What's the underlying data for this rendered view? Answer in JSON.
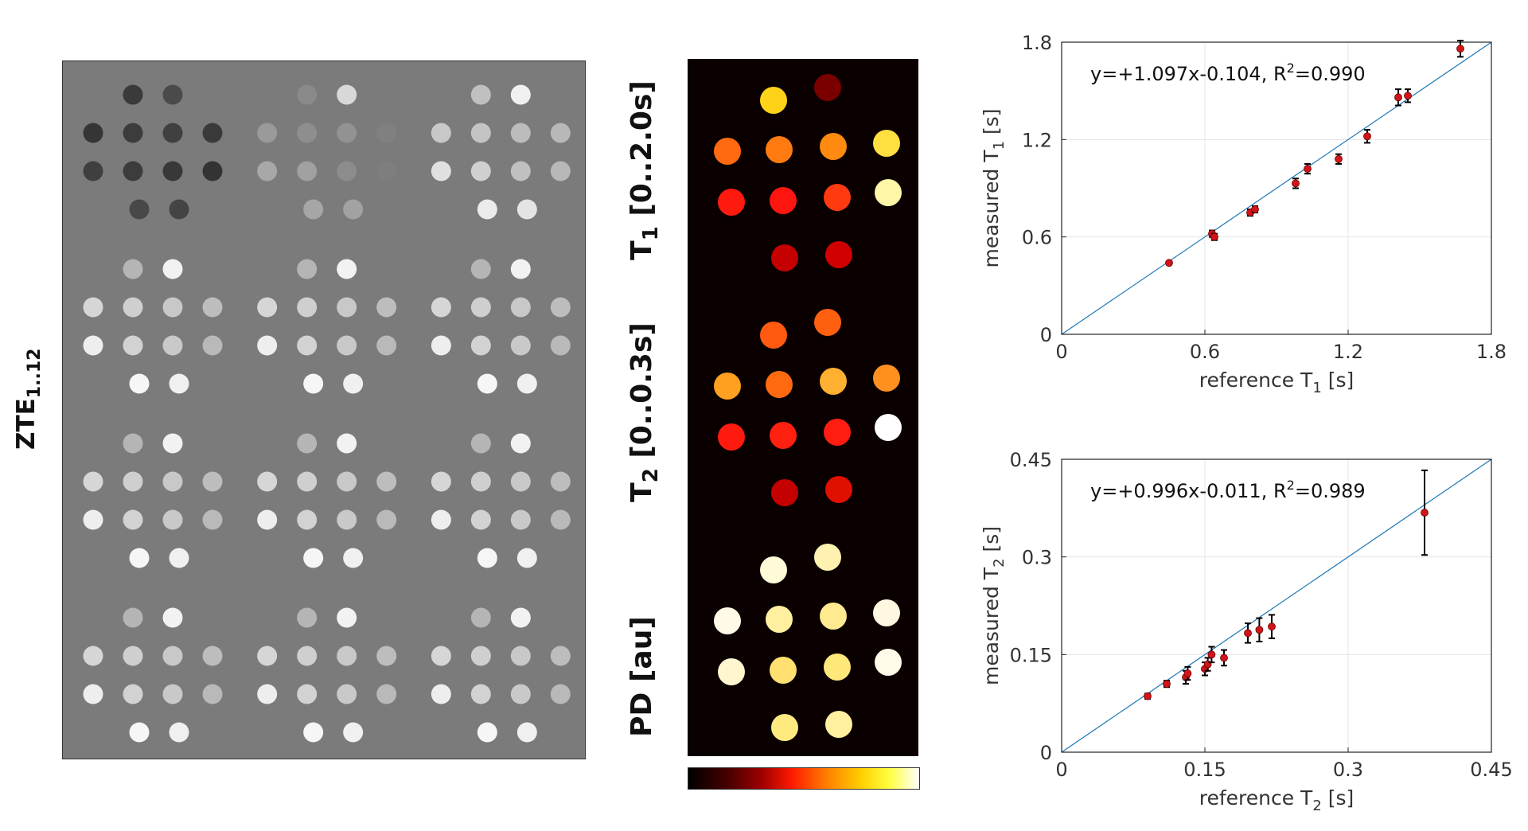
{
  "panels": {
    "zte_label": "ZTE",
    "zte_label_sub": "1..12",
    "t1_label_main": "T",
    "t1_label_sub": "1",
    "t1_label_range": " [0..2.0s]",
    "t2_label_main": "T",
    "t2_label_sub": "2",
    "t2_label_range": " [0..0.3s]",
    "pd_label": "PD [au]"
  },
  "colors": {
    "marker": "#d0141a",
    "fit_line": "#1f77b4",
    "errorbar": "#000000"
  },
  "chart_data": [
    {
      "type": "scatter",
      "name": "T1",
      "annotation": "y=+1.097x-0.104,  R",
      "annotation_sup": "2",
      "annotation_tail": "=0.990",
      "xlabel_main": "reference T",
      "xlabel_sub": "1",
      "xlabel_unit": " [s]",
      "ylabel_main": "measured T",
      "ylabel_sub": "1",
      "ylabel_unit": " [s]",
      "xlim": [
        0,
        1.8
      ],
      "ylim": [
        0,
        1.8
      ],
      "xticks": [
        "0",
        "0.6",
        "1.2",
        "1.8"
      ],
      "yticks": [
        "0",
        "0.6",
        "1.2",
        "1.8"
      ],
      "tick_values": [
        0,
        0.6,
        1.2,
        1.8
      ],
      "grid": true,
      "fit_line": [
        [
          0,
          0
        ],
        [
          1.8,
          1.8
        ]
      ],
      "points": [
        {
          "x": 0.45,
          "y": 0.44,
          "err": 0.01
        },
        {
          "x": 0.63,
          "y": 0.62,
          "err": 0.02
        },
        {
          "x": 0.64,
          "y": 0.6,
          "err": 0.02
        },
        {
          "x": 0.79,
          "y": 0.75,
          "err": 0.02
        },
        {
          "x": 0.81,
          "y": 0.77,
          "err": 0.02
        },
        {
          "x": 0.98,
          "y": 0.93,
          "err": 0.03
        },
        {
          "x": 1.03,
          "y": 1.02,
          "err": 0.03
        },
        {
          "x": 1.16,
          "y": 1.08,
          "err": 0.03
        },
        {
          "x": 1.28,
          "y": 1.22,
          "err": 0.04
        },
        {
          "x": 1.41,
          "y": 1.46,
          "err": 0.05
        },
        {
          "x": 1.45,
          "y": 1.47,
          "err": 0.04
        },
        {
          "x": 1.67,
          "y": 1.76,
          "err": 0.05
        }
      ]
    },
    {
      "type": "scatter",
      "name": "T2",
      "annotation": "y=+0.996x-0.011,  R",
      "annotation_sup": "2",
      "annotation_tail": "=0.989",
      "xlabel_main": "reference T",
      "xlabel_sub": "2",
      "xlabel_unit": " [s]",
      "ylabel_main": "measured T",
      "ylabel_sub": "2",
      "ylabel_unit": " [s]",
      "xlim": [
        0,
        0.45
      ],
      "ylim": [
        0,
        0.45
      ],
      "xticks": [
        "0",
        "0.15",
        "0.3",
        "0.45"
      ],
      "yticks": [
        "0",
        "0.15",
        "0.3",
        "0.45"
      ],
      "tick_values": [
        0,
        0.15,
        0.3,
        0.45
      ],
      "grid": true,
      "fit_line": [
        [
          0,
          0
        ],
        [
          0.45,
          0.45
        ]
      ],
      "points": [
        {
          "x": 0.09,
          "y": 0.086,
          "err": 0.004
        },
        {
          "x": 0.11,
          "y": 0.105,
          "err": 0.005
        },
        {
          "x": 0.13,
          "y": 0.115,
          "err": 0.01
        },
        {
          "x": 0.132,
          "y": 0.121,
          "err": 0.01
        },
        {
          "x": 0.15,
          "y": 0.128,
          "err": 0.01
        },
        {
          "x": 0.153,
          "y": 0.135,
          "err": 0.01
        },
        {
          "x": 0.157,
          "y": 0.15,
          "err": 0.012
        },
        {
          "x": 0.17,
          "y": 0.145,
          "err": 0.012
        },
        {
          "x": 0.195,
          "y": 0.183,
          "err": 0.015
        },
        {
          "x": 0.207,
          "y": 0.188,
          "err": 0.018
        },
        {
          "x": 0.22,
          "y": 0.193,
          "err": 0.018
        },
        {
          "x": 0.38,
          "y": 0.368,
          "err": 0.065
        }
      ]
    }
  ]
}
